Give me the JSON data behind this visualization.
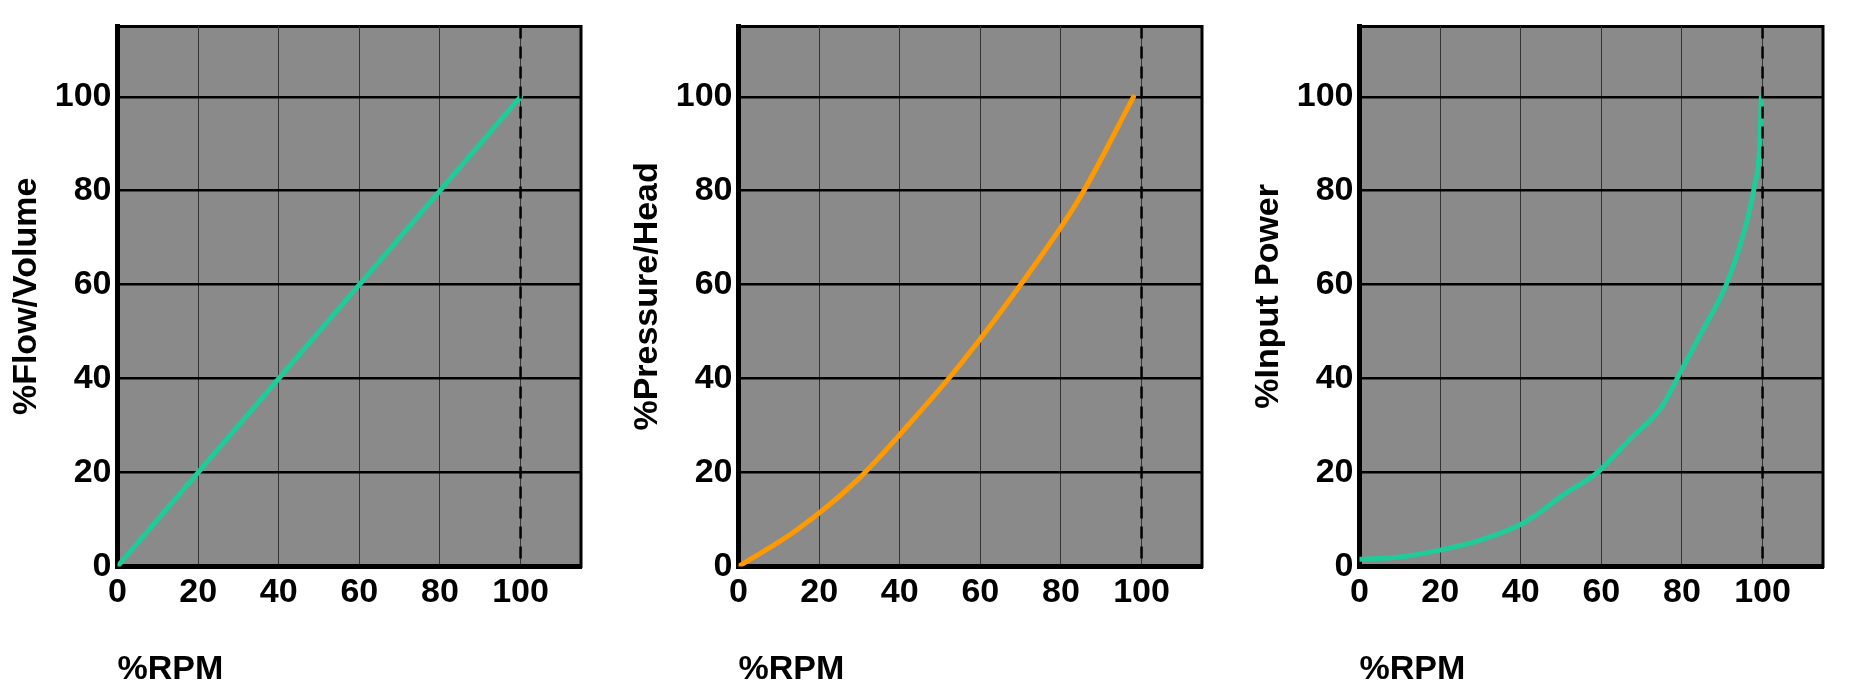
{
  "chart_data": [
    {
      "type": "line",
      "xlabel": "%RPM",
      "ylabel": "%Flow/Volume",
      "xlim": [
        0,
        115
      ],
      "ylim": [
        0,
        115
      ],
      "xticks": [
        0,
        20,
        40,
        60,
        80,
        100
      ],
      "yticks": [
        0,
        20,
        40,
        60,
        80,
        100
      ],
      "grid": true,
      "legend": false,
      "marker": "none",
      "line_style": "solid",
      "series": [
        {
          "color": "#1fcc99",
          "x": [
            0,
            100
          ],
          "values": [
            0,
            100
          ]
        }
      ],
      "ref_lines": [
        {
          "axis": "x",
          "value": 100,
          "line_style": "dashed",
          "color": "#000000"
        }
      ]
    },
    {
      "type": "line",
      "xlabel": "%RPM",
      "ylabel": "%Pressure/Head",
      "xlim": [
        0,
        115
      ],
      "ylim": [
        0,
        115
      ],
      "xticks": [
        0,
        20,
        40,
        60,
        80,
        100
      ],
      "yticks": [
        0,
        20,
        40,
        60,
        80,
        100
      ],
      "grid": true,
      "legend": false,
      "marker": "none",
      "line_style": "solid",
      "series": [
        {
          "color": "#ff9900",
          "x": [
            0,
            14,
            29,
            42,
            55,
            70,
            85,
            98
          ],
          "values": [
            0,
            7.5,
            18,
            30,
            43,
            60,
            79,
            100
          ]
        }
      ],
      "ref_lines": [
        {
          "axis": "x",
          "value": 100,
          "line_style": "dashed",
          "color": "#000000"
        }
      ]
    },
    {
      "type": "line",
      "xlabel": "%RPM",
      "ylabel": "%Input Power",
      "xlim": [
        0,
        115
      ],
      "ylim": [
        0,
        115
      ],
      "xticks": [
        0,
        20,
        40,
        60,
        80,
        100
      ],
      "yticks": [
        0,
        20,
        40,
        60,
        80,
        100
      ],
      "grid": true,
      "legend": false,
      "marker": "none",
      "line_style": "solid",
      "series": [
        {
          "color": "#1fcc99",
          "x": [
            0,
            10,
            19,
            30,
            41,
            51,
            59,
            67,
            75,
            80,
            85,
            91,
            95,
            98,
            99.4,
            99.7
          ],
          "values": [
            1.5,
            2,
            3.3,
            5.6,
            9.4,
            15.5,
            20,
            27,
            34,
            42,
            50,
            60,
            70,
            81,
            91,
            100
          ]
        }
      ],
      "ref_lines": [
        {
          "axis": "x",
          "value": 100,
          "line_style": "dashed",
          "color": "#000000"
        }
      ]
    }
  ]
}
